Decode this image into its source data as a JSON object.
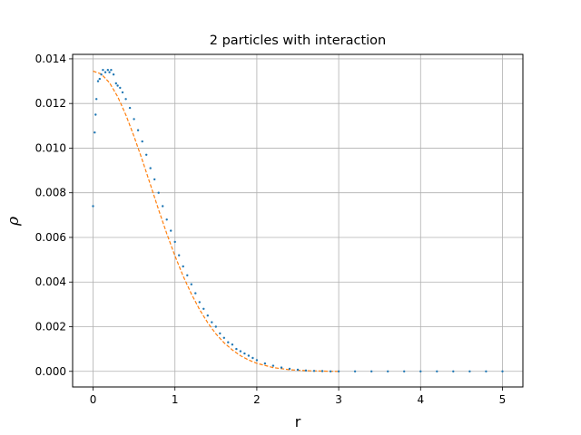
{
  "chart_data": {
    "type": "scatter",
    "title": "2 particles with interaction",
    "xlabel": "r",
    "ylabel": "ρ",
    "xlim": [
      -0.25,
      5.25
    ],
    "ylim": [
      -0.0007,
      0.0142
    ],
    "grid": true,
    "x_ticks": [
      "0",
      "1",
      "2",
      "3",
      "4",
      "5"
    ],
    "y_ticks": [
      "0.000",
      "0.002",
      "0.004",
      "0.006",
      "0.008",
      "0.010",
      "0.012",
      "0.014"
    ],
    "colors": {
      "points": "#1f77b4",
      "dashed": "#ff7f0e",
      "grid": "#b0b0b0"
    },
    "series": [
      {
        "style": "scatter-points",
        "x": [
          0.0,
          0.02,
          0.03,
          0.04,
          0.06,
          0.08,
          0.1,
          0.12,
          0.15,
          0.18,
          0.2,
          0.22,
          0.25,
          0.28,
          0.3,
          0.33,
          0.36,
          0.4,
          0.45,
          0.5,
          0.55,
          0.6,
          0.65,
          0.7,
          0.75,
          0.8,
          0.85,
          0.9,
          0.95,
          1.0,
          1.05,
          1.1,
          1.15,
          1.2,
          1.25,
          1.3,
          1.35,
          1.4,
          1.45,
          1.5,
          1.55,
          1.6,
          1.65,
          1.7,
          1.75,
          1.8,
          1.85,
          1.9,
          1.95,
          2.0,
          2.1,
          2.2,
          2.3,
          2.4,
          2.5,
          2.6,
          2.7,
          2.8,
          2.9,
          3.0,
          3.2,
          3.4,
          3.6,
          3.8,
          4.0,
          4.2,
          4.4,
          4.6,
          4.8,
          5.0
        ],
        "y": [
          0.0074,
          0.0107,
          0.0115,
          0.0122,
          0.013,
          0.0131,
          0.0133,
          0.0135,
          0.0134,
          0.0135,
          0.0134,
          0.0135,
          0.0133,
          0.0129,
          0.0128,
          0.0127,
          0.0125,
          0.0122,
          0.0118,
          0.0113,
          0.0108,
          0.0103,
          0.0097,
          0.0091,
          0.0086,
          0.008,
          0.0074,
          0.0068,
          0.0063,
          0.0058,
          0.0052,
          0.0047,
          0.0043,
          0.0039,
          0.0035,
          0.0031,
          0.0028,
          0.0025,
          0.0022,
          0.002,
          0.0017,
          0.0015,
          0.0013,
          0.0012,
          0.001,
          0.0009,
          0.0008,
          0.0007,
          0.0006,
          0.0005,
          0.00035,
          0.00025,
          0.00017,
          0.00011,
          7e-05,
          4e-05,
          2e-05,
          1e-05,
          0.0,
          0.0,
          0.0,
          0.0,
          0.0,
          0.0,
          0.0,
          0.0,
          0.0,
          0.0,
          0.0,
          0.0
        ]
      },
      {
        "style": "dashed-line",
        "x": [
          0.0,
          0.1,
          0.2,
          0.3,
          0.4,
          0.5,
          0.6,
          0.7,
          0.8,
          0.9,
          1.0,
          1.1,
          1.2,
          1.3,
          1.4,
          1.5,
          1.6,
          1.7,
          1.8,
          1.9,
          2.0,
          2.2,
          2.4,
          2.6,
          2.8,
          3.0
        ],
        "y": [
          0.01345,
          0.01332,
          0.01293,
          0.01231,
          0.01149,
          0.01053,
          0.00947,
          0.00836,
          0.00724,
          0.00617,
          0.00518,
          0.00427,
          0.00347,
          0.00277,
          0.00218,
          0.00168,
          0.00128,
          0.00096,
          0.0007,
          0.00051,
          0.00036,
          0.00017,
          7e-05,
          3e-05,
          1e-05,
          0.0
        ]
      }
    ]
  }
}
